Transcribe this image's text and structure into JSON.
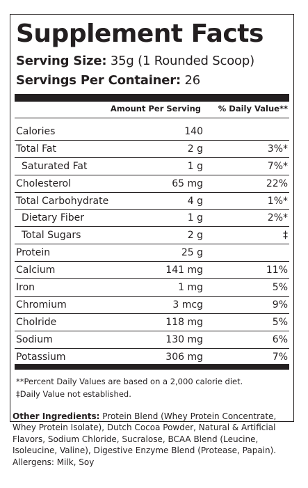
{
  "title": "Supplement Facts",
  "serving_size_label": "Serving Size:",
  "serving_size_value": "35g (1 Rounded Scoop)",
  "servings_per_container_label": "Servings Per Container:",
  "servings_per_container_value": "26",
  "header": {
    "amount": "Amount Per Serving",
    "daily_value": "% Daily Value**"
  },
  "rows": [
    {
      "name": "Calories",
      "amount": "140",
      "dv": ""
    },
    {
      "name": "Total Fat",
      "amount": "2 g",
      "dv": "3%*"
    },
    {
      "name": "Saturated Fat",
      "amount": "1 g",
      "dv": "7%*"
    },
    {
      "name": "Cholesterol",
      "amount": "65 mg",
      "dv": "22%"
    },
    {
      "name": "Total Carbohydrate",
      "amount": "4 g",
      "dv": "1%*"
    },
    {
      "name": "Dietary Fiber",
      "amount": "1 g",
      "dv": "2%*"
    },
    {
      "name": "Total Sugars",
      "amount": "2 g",
      "dv": "‡"
    },
    {
      "name": "Protein",
      "amount": "25 g",
      "dv": ""
    },
    {
      "name": "Calcium",
      "amount": "141 mg",
      "dv": "11%"
    },
    {
      "name": "Iron",
      "amount": "1 mg",
      "dv": "5%"
    },
    {
      "name": "Chromium",
      "amount": "3 mcg",
      "dv": "9%"
    },
    {
      "name": "Cholride",
      "amount": "118 mg",
      "dv": "5%"
    },
    {
      "name": "Sodium",
      "amount": "130 mg",
      "dv": "6%"
    },
    {
      "name": "Potassium",
      "amount": "306 mg",
      "dv": "7%"
    }
  ],
  "footnotes": {
    "percent_dv": "**Percent Daily Values are based on a 2,000 calorie diet.",
    "not_established": "‡Daily Value not established."
  },
  "ingredients": {
    "label": "Other Ingredients:",
    "text": "Protein Blend (Whey Protein Concentrate, Whey Protein Isolate), Dutch Cocoa Powder, Natural & Artificial Flavors, Sodium Chloride, Sucralose, BCAA Blend (Leucine, Isoleucine, Valine), Digestive Enzyme Blend (Protease, Papain).",
    "allergens": "Allergens: Milk, Soy"
  }
}
